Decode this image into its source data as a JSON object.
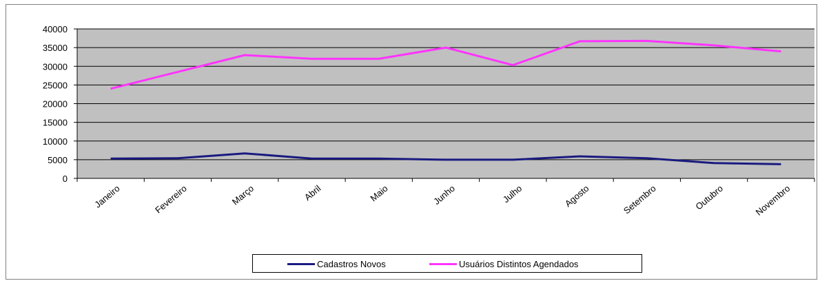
{
  "chart_data": {
    "type": "line",
    "categories": [
      "Janeiro",
      "Fevereiro",
      "Março",
      "Abril",
      "Maio",
      "Junho",
      "Julho",
      "Agosto",
      "Setembro",
      "Outubro",
      "Novembro"
    ],
    "series": [
      {
        "name": "Cadastros Novos",
        "color": "#1a1a80",
        "values": [
          5300,
          5400,
          6700,
          5300,
          5300,
          5000,
          5000,
          5900,
          5400,
          4100,
          3800
        ]
      },
      {
        "name": "Usuários Distintos Agendados",
        "color": "#ff33ff",
        "values": [
          24000,
          28500,
          33000,
          32000,
          32000,
          35000,
          30300,
          36700,
          36800,
          35600,
          34000
        ]
      }
    ],
    "ylim": [
      0,
      40000
    ],
    "yticks": [
      0,
      5000,
      10000,
      15000,
      20000,
      25000,
      30000,
      35000,
      40000
    ],
    "plot_background": "#c0c0c0",
    "grid": true,
    "legend_position": "bottom"
  }
}
